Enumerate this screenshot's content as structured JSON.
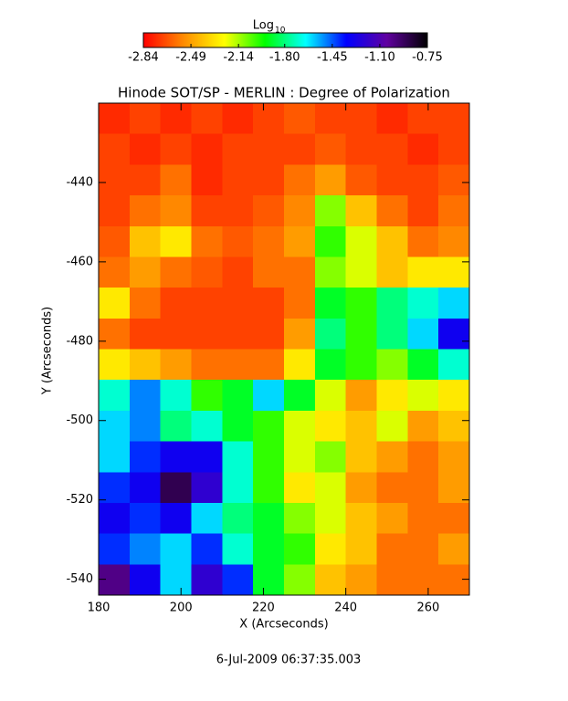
{
  "chart_data": {
    "type": "heatmap",
    "title": "Hinode SOT/SP - MERLIN : Degree of Polarization",
    "xlabel": "X (Arcseconds)",
    "ylabel": "Y (Arcseconds)",
    "footer": "6-Jul-2009 06:37:35.003",
    "colorbar_label": "Log",
    "colorbar_label_sub": "10",
    "clim": [
      -2.84,
      -0.75
    ],
    "cticks": [
      -2.84,
      -2.49,
      -2.14,
      {
        "value": -1.8,
        "label": "-1.80"
      },
      -1.45,
      {
        "value": -1.1,
        "label": "-1.10"
      },
      -0.75
    ],
    "colormap": [
      "#ff0000",
      "#ff8c00",
      "#ffff00",
      "#00ff00",
      "#00ffff",
      "#0000ff",
      "#6000a0",
      "#000000"
    ],
    "xlim": [
      180,
      270
    ],
    "ylim": [
      -544,
      -420
    ],
    "xticks": [
      180,
      200,
      220,
      240,
      260
    ],
    "yticks": [
      -440,
      -460,
      -480,
      -500,
      -520,
      -540
    ],
    "x_edges": [
      180,
      187.5,
      195,
      202.5,
      210,
      217.5,
      225,
      232.5,
      240,
      247.5,
      255,
      262.5,
      270
    ],
    "y_edges": [
      -420,
      -427.75,
      -435.5,
      -443.25,
      -451,
      -458.75,
      -466.5,
      -474.25,
      -482,
      -489.75,
      -497.5,
      -505.25,
      -513,
      -520.75,
      -528.5,
      -536.25,
      -544
    ],
    "z": [
      [
        -2.75,
        -2.7,
        -2.75,
        -2.7,
        -2.75,
        -2.7,
        -2.65,
        -2.7,
        -2.7,
        -2.75,
        -2.7,
        -2.7
      ],
      [
        -2.7,
        -2.75,
        -2.7,
        -2.75,
        -2.7,
        -2.7,
        -2.7,
        -2.65,
        -2.7,
        -2.7,
        -2.75,
        -2.7
      ],
      [
        -2.7,
        -2.7,
        -2.6,
        -2.75,
        -2.7,
        -2.7,
        -2.6,
        -2.5,
        -2.65,
        -2.7,
        -2.7,
        -2.65
      ],
      [
        -2.7,
        -2.6,
        -2.55,
        -2.7,
        -2.7,
        -2.65,
        -2.55,
        -2.1,
        -2.4,
        -2.6,
        -2.7,
        -2.6
      ],
      [
        -2.65,
        -2.4,
        -2.3,
        -2.6,
        -2.65,
        -2.6,
        -2.5,
        -2.0,
        -2.2,
        -2.4,
        -2.6,
        -2.55
      ],
      [
        -2.6,
        -2.5,
        -2.6,
        -2.65,
        -2.7,
        -2.6,
        -2.6,
        -2.1,
        -2.2,
        -2.4,
        -2.3,
        -2.3
      ],
      [
        -2.3,
        -2.6,
        -2.7,
        -2.7,
        -2.7,
        -2.7,
        -2.6,
        -1.9,
        -2.0,
        -1.8,
        -1.7,
        -1.6
      ],
      [
        -2.6,
        -2.7,
        -2.7,
        -2.7,
        -2.7,
        -2.7,
        -2.5,
        -1.8,
        -2.0,
        -1.8,
        -1.6,
        -1.3
      ],
      [
        -2.3,
        -2.4,
        -2.5,
        -2.6,
        -2.6,
        -2.6,
        -2.3,
        -1.9,
        -2.0,
        -2.1,
        -1.9,
        -1.7
      ],
      [
        -1.7,
        -1.5,
        -1.7,
        -2.0,
        -1.9,
        -1.6,
        -1.9,
        -2.2,
        -2.5,
        -2.3,
        -2.2,
        -2.3
      ],
      [
        -1.6,
        -1.5,
        -1.8,
        -1.7,
        -1.9,
        -2.0,
        -2.2,
        -2.3,
        -2.4,
        -2.2,
        -2.5,
        -2.4
      ],
      [
        -1.6,
        -1.4,
        -1.3,
        -1.3,
        -1.7,
        -2.0,
        -2.2,
        -2.1,
        -2.4,
        -2.5,
        -2.6,
        -2.5
      ],
      [
        -1.4,
        -1.3,
        -0.9,
        -1.2,
        -1.7,
        -2.0,
        -2.3,
        -2.2,
        -2.5,
        -2.6,
        -2.6,
        -2.5
      ],
      [
        -1.3,
        -1.4,
        -1.3,
        -1.6,
        -1.8,
        -1.9,
        -2.1,
        -2.2,
        -2.4,
        -2.5,
        -2.6,
        -2.6
      ],
      [
        -1.4,
        -1.5,
        -1.6,
        -1.4,
        -1.7,
        -1.9,
        -2.0,
        -2.3,
        -2.4,
        -2.6,
        -2.6,
        -2.5
      ],
      [
        -1.0,
        -1.3,
        -1.6,
        -1.2,
        -1.4,
        -1.9,
        -2.1,
        -2.4,
        -2.5,
        -2.6,
        -2.6,
        -2.6
      ]
    ]
  }
}
